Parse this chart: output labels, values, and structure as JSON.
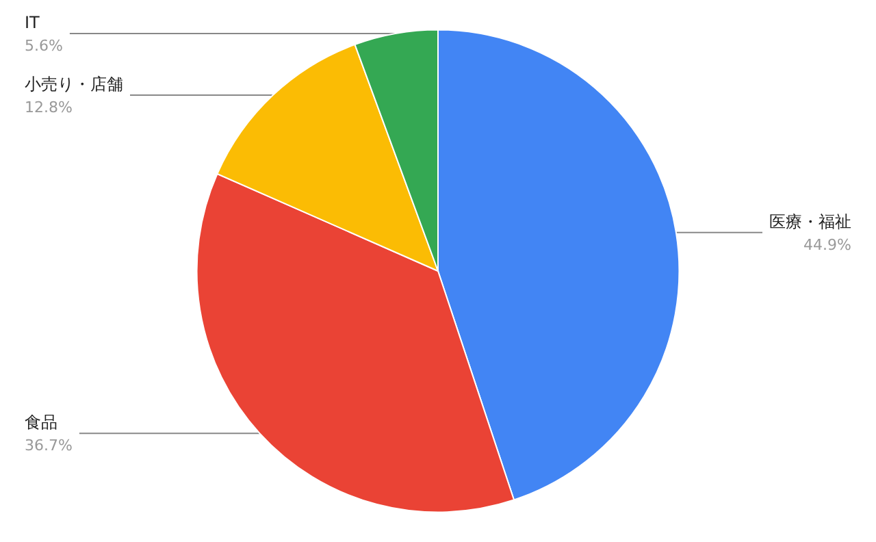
{
  "chart_data": {
    "type": "pie",
    "categories": [
      "医療・福祉",
      "食品",
      "小売り・店舗",
      "IT"
    ],
    "values": [
      44.9,
      36.7,
      12.8,
      5.6
    ],
    "value_labels": [
      "44.9%",
      "36.7%",
      "12.8%",
      "5.6%"
    ],
    "colors": [
      "#4285f4",
      "#ea4335",
      "#fbbc04",
      "#34a853"
    ],
    "legend": false
  }
}
